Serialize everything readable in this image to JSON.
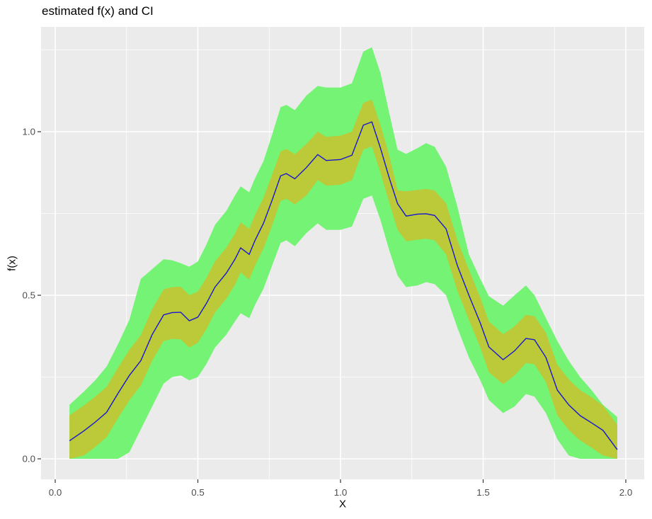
{
  "title": "estimated f(x) and CI",
  "axes": {
    "x_label": "X",
    "y_label": "f(x)"
  },
  "chart_data": {
    "type": "area",
    "title": "estimated f(x) and CI",
    "xlabel": "X",
    "ylabel": "f(x)",
    "x_tick_labels": [
      "0.0",
      "0.5",
      "1.0",
      "1.5",
      "2.0"
    ],
    "x_tick_values": [
      0.0,
      0.5,
      1.0,
      1.5,
      2.0
    ],
    "y_tick_labels": [
      "0.0",
      "0.5",
      "1.0"
    ],
    "y_tick_values": [
      0.0,
      0.5,
      1.0
    ],
    "x_minor": [
      0.25,
      0.75,
      1.25,
      1.75
    ],
    "y_minor": [
      0.25,
      0.75,
      1.25
    ],
    "xlim": [
      -0.05,
      2.065
    ],
    "ylim": [
      -0.063,
      1.32
    ],
    "grid": "white major and minor gridlines on gray panel (ggplot style)",
    "legend_position": "none",
    "colors": {
      "panel_background": "#EBEBEB",
      "gridline": "#FFFFFF",
      "outer_band": "#74F374",
      "inner_band": "#BCC939",
      "fit_line": "#1717D0",
      "tick_text": "#4D4D4D",
      "tick_mark": "#333333",
      "title_text": "#000000"
    },
    "series": [
      {
        "name": "outer-ci-band",
        "kind": "band",
        "color": "#74F374"
      },
      {
        "name": "inner-ci-band",
        "kind": "band",
        "color": "#BCC939"
      },
      {
        "name": "estimated-fx",
        "kind": "line",
        "color": "#1717D0"
      }
    ],
    "x": [
      0.05,
      0.1,
      0.14,
      0.18,
      0.22,
      0.26,
      0.3,
      0.34,
      0.38,
      0.41,
      0.44,
      0.47,
      0.5,
      0.53,
      0.56,
      0.6,
      0.63,
      0.65,
      0.68,
      0.7,
      0.73,
      0.76,
      0.79,
      0.81,
      0.84,
      0.88,
      0.92,
      0.95,
      1.0,
      1.04,
      1.08,
      1.11,
      1.14,
      1.17,
      1.2,
      1.23,
      1.27,
      1.3,
      1.33,
      1.37,
      1.41,
      1.45,
      1.49,
      1.52,
      1.57,
      1.61,
      1.65,
      1.68,
      1.72,
      1.76,
      1.8,
      1.84,
      1.88,
      1.92,
      1.97
    ],
    "fit": [
      0.055,
      0.085,
      0.112,
      0.142,
      0.2,
      0.255,
      0.3,
      0.38,
      0.44,
      0.447,
      0.448,
      0.422,
      0.433,
      0.475,
      0.525,
      0.568,
      0.61,
      0.645,
      0.625,
      0.667,
      0.72,
      0.79,
      0.865,
      0.872,
      0.856,
      0.89,
      0.93,
      0.912,
      0.915,
      0.928,
      1.02,
      1.03,
      0.95,
      0.861,
      0.78,
      0.742,
      0.748,
      0.749,
      0.744,
      0.703,
      0.59,
      0.5,
      0.415,
      0.342,
      0.303,
      0.33,
      0.368,
      0.364,
      0.31,
      0.21,
      0.165,
      0.132,
      0.11,
      0.087,
      0.028
    ],
    "inner_hi": [
      0.133,
      0.163,
      0.19,
      0.22,
      0.278,
      0.333,
      0.378,
      0.458,
      0.518,
      0.525,
      0.526,
      0.5,
      0.511,
      0.553,
      0.603,
      0.646,
      0.688,
      0.723,
      0.703,
      0.745,
      0.798,
      0.868,
      0.94,
      0.947,
      0.931,
      0.962,
      1.0,
      0.984,
      0.988,
      1.0,
      1.088,
      1.098,
      1.02,
      0.93,
      0.82,
      0.818,
      0.822,
      0.825,
      0.82,
      0.781,
      0.668,
      0.578,
      0.493,
      0.42,
      0.381,
      0.405,
      0.44,
      0.436,
      0.385,
      0.288,
      0.243,
      0.21,
      0.188,
      0.163,
      0.104
    ],
    "inner_lo": [
      0.0,
      0.01,
      0.036,
      0.066,
      0.124,
      0.179,
      0.224,
      0.3,
      0.36,
      0.367,
      0.365,
      0.34,
      0.355,
      0.397,
      0.447,
      0.49,
      0.532,
      0.57,
      0.548,
      0.59,
      0.643,
      0.713,
      0.788,
      0.795,
      0.778,
      0.805,
      0.852,
      0.835,
      0.838,
      0.852,
      0.945,
      0.955,
      0.875,
      0.786,
      0.7,
      0.665,
      0.67,
      0.673,
      0.668,
      0.625,
      0.513,
      0.425,
      0.34,
      0.265,
      0.228,
      0.255,
      0.293,
      0.289,
      0.235,
      0.133,
      0.088,
      0.056,
      0.034,
      0.01,
      0.0
    ],
    "outer_hi": [
      0.165,
      0.205,
      0.24,
      0.282,
      0.35,
      0.425,
      0.55,
      0.58,
      0.61,
      0.607,
      0.598,
      0.587,
      0.603,
      0.655,
      0.715,
      0.758,
      0.805,
      0.833,
      0.815,
      0.857,
      0.91,
      0.99,
      1.075,
      1.082,
      1.066,
      1.11,
      1.14,
      1.135,
      1.135,
      1.148,
      1.245,
      1.258,
      1.18,
      1.06,
      0.945,
      0.932,
      0.95,
      0.965,
      0.954,
      0.893,
      0.77,
      0.625,
      0.55,
      0.497,
      0.468,
      0.5,
      0.53,
      0.5,
      0.43,
      0.36,
      0.3,
      0.25,
      0.21,
      0.165,
      0.128
    ],
    "outer_lo": [
      0.0,
      0.0,
      0.0,
      0.0,
      0.0,
      0.02,
      0.09,
      0.16,
      0.23,
      0.25,
      0.255,
      0.24,
      0.25,
      0.29,
      0.34,
      0.38,
      0.42,
      0.445,
      0.43,
      0.47,
      0.52,
      0.59,
      0.66,
      0.668,
      0.65,
      0.69,
      0.72,
      0.7,
      0.7,
      0.71,
      0.795,
      0.805,
      0.73,
      0.64,
      0.56,
      0.525,
      0.53,
      0.54,
      0.534,
      0.5,
      0.4,
      0.31,
      0.24,
      0.18,
      0.14,
      0.16,
      0.198,
      0.19,
      0.14,
      0.06,
      0.01,
      0.0,
      0.0,
      0.0,
      0.0
    ]
  }
}
